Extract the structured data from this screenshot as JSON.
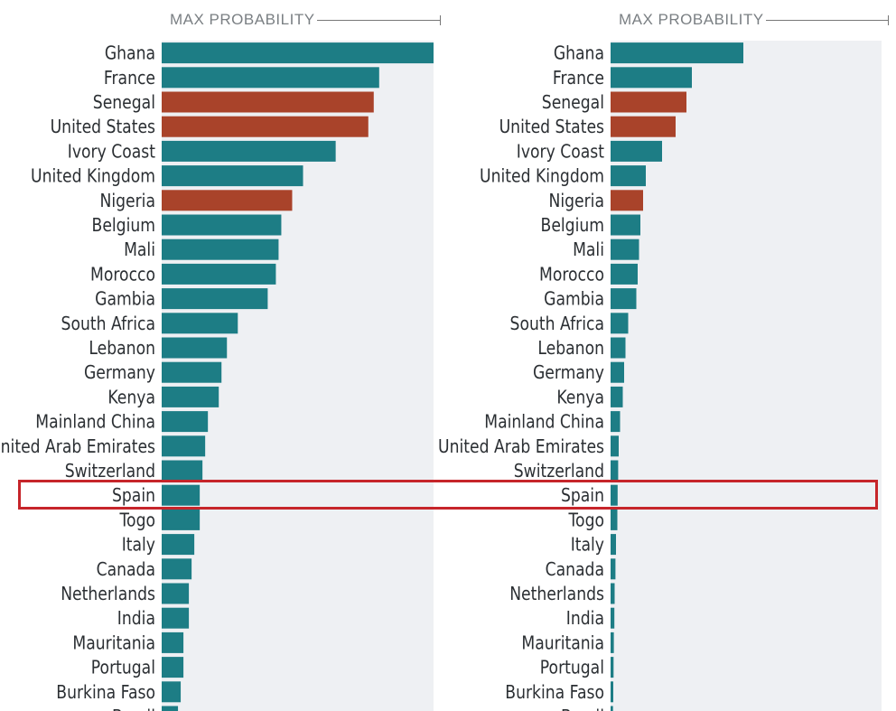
{
  "colors": {
    "teal": "#1d7d85",
    "rust": "#a9432a",
    "track": "#eef0f3",
    "highlight_border": "#c6252a"
  },
  "chart_data": [
    {
      "type": "bar",
      "orientation": "horizontal",
      "header": "MAX PROBABILITY",
      "highlighted_category": "Spain",
      "categories": [
        "Ghana",
        "France",
        "Senegal",
        "United States",
        "Ivory Coast",
        "United Kingdom",
        "Nigeria",
        "Belgium",
        "Mali",
        "Morocco",
        "Gambia",
        "South Africa",
        "Lebanon",
        "Germany",
        "Kenya",
        "Mainland China",
        "United Arab Emirates",
        "Switzerland",
        "Spain",
        "Togo",
        "Italy",
        "Canada",
        "Netherlands",
        "India",
        "Mauritania",
        "Portugal",
        "Burkina Faso",
        "Brazil"
      ],
      "values": [
        1.0,
        0.8,
        0.78,
        0.76,
        0.64,
        0.52,
        0.48,
        0.44,
        0.43,
        0.42,
        0.39,
        0.28,
        0.24,
        0.22,
        0.21,
        0.17,
        0.16,
        0.15,
        0.14,
        0.14,
        0.12,
        0.11,
        0.1,
        0.1,
        0.08,
        0.08,
        0.07,
        0.06
      ],
      "bar_colors": [
        "teal",
        "teal",
        "rust",
        "rust",
        "teal",
        "teal",
        "rust",
        "teal",
        "teal",
        "teal",
        "teal",
        "teal",
        "teal",
        "teal",
        "teal",
        "teal",
        "teal",
        "teal",
        "teal",
        "teal",
        "teal",
        "teal",
        "teal",
        "teal",
        "teal",
        "teal",
        "teal",
        "teal"
      ],
      "xlim": [
        0,
        1
      ]
    },
    {
      "type": "bar",
      "orientation": "horizontal",
      "header": "MAX PROBABILITY",
      "highlighted_category": "Spain",
      "categories": [
        "Ghana",
        "France",
        "Senegal",
        "United States",
        "Ivory Coast",
        "United Kingdom",
        "Nigeria",
        "Belgium",
        "Mali",
        "Morocco",
        "Gambia",
        "South Africa",
        "Lebanon",
        "Germany",
        "Kenya",
        "Mainland China",
        "United Arab Emirates",
        "Switzerland",
        "Spain",
        "Togo",
        "Italy",
        "Canada",
        "Netherlands",
        "India",
        "Mauritania",
        "Portugal",
        "Burkina Faso",
        "Brazil"
      ],
      "values": [
        0.49,
        0.3,
        0.28,
        0.24,
        0.19,
        0.13,
        0.12,
        0.11,
        0.105,
        0.1,
        0.095,
        0.065,
        0.055,
        0.05,
        0.045,
        0.035,
        0.03,
        0.028,
        0.026,
        0.025,
        0.02,
        0.018,
        0.015,
        0.014,
        0.012,
        0.011,
        0.01,
        0.009
      ],
      "bar_colors": [
        "teal",
        "teal",
        "rust",
        "rust",
        "teal",
        "teal",
        "rust",
        "teal",
        "teal",
        "teal",
        "teal",
        "teal",
        "teal",
        "teal",
        "teal",
        "teal",
        "teal",
        "teal",
        "teal",
        "teal",
        "teal",
        "teal",
        "teal",
        "teal",
        "teal",
        "teal",
        "teal",
        "teal"
      ],
      "xlim": [
        0,
        1
      ]
    }
  ]
}
